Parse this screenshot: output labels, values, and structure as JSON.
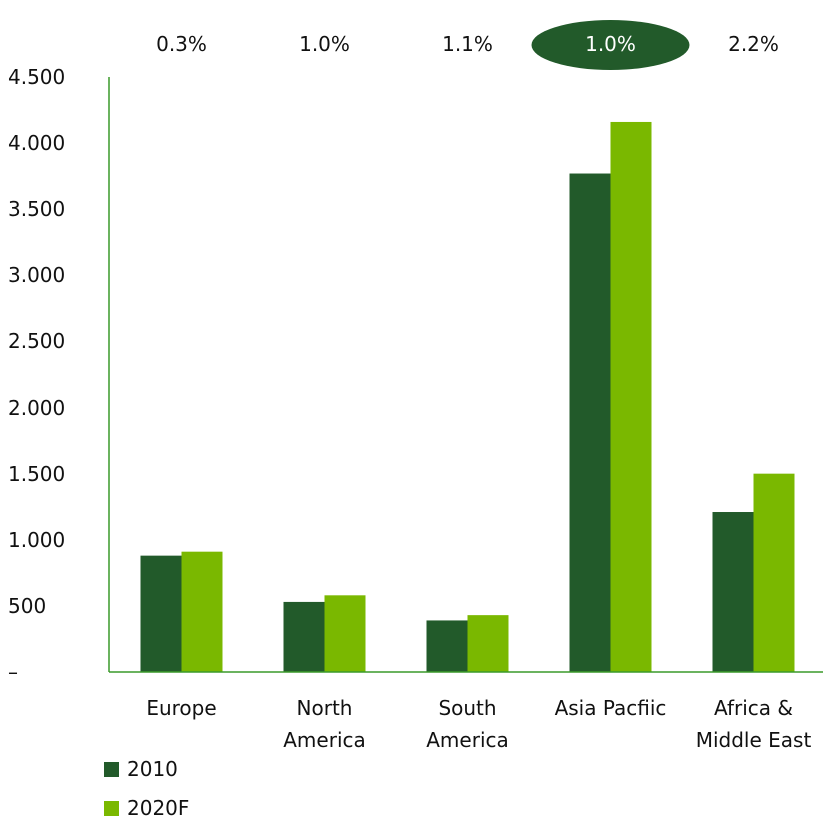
{
  "chart_data": {
    "type": "bar",
    "categories": [
      "Europe",
      "North America",
      "South America",
      "Asia Pacfiic",
      "Africa & Middle East"
    ],
    "series": [
      {
        "name": "2010",
        "color": "#225a2a",
        "values": [
          880,
          530,
          390,
          3770,
          1210
        ]
      },
      {
        "name": "2020F",
        "color": "#7ab800",
        "values": [
          910,
          580,
          430,
          4160,
          1500
        ]
      }
    ],
    "annotations": [
      "0.3%",
      "1.0%",
      "1.1%",
      "1.0%",
      "2.2%"
    ],
    "highlight_index": 3,
    "highlight_color": "#225a2a",
    "axis_color": "#3a9a2a",
    "ylim": [
      0,
      4500
    ],
    "yticks": [
      {
        "value": 0,
        "label": "–"
      },
      500,
      {
        "value": 1000,
        "label": "1.000"
      },
      {
        "value": 1500,
        "label": "1.500"
      },
      {
        "value": 2000,
        "label": "2.000"
      },
      {
        "value": 2500,
        "label": "2.500"
      },
      {
        "value": 3000,
        "label": "3.000"
      },
      {
        "value": 3500,
        "label": "3.500"
      },
      {
        "value": 4000,
        "label": "4.000"
      },
      {
        "value": 4500,
        "label": "4.500"
      }
    ],
    "grid": false,
    "legend": "bottom-left"
  }
}
